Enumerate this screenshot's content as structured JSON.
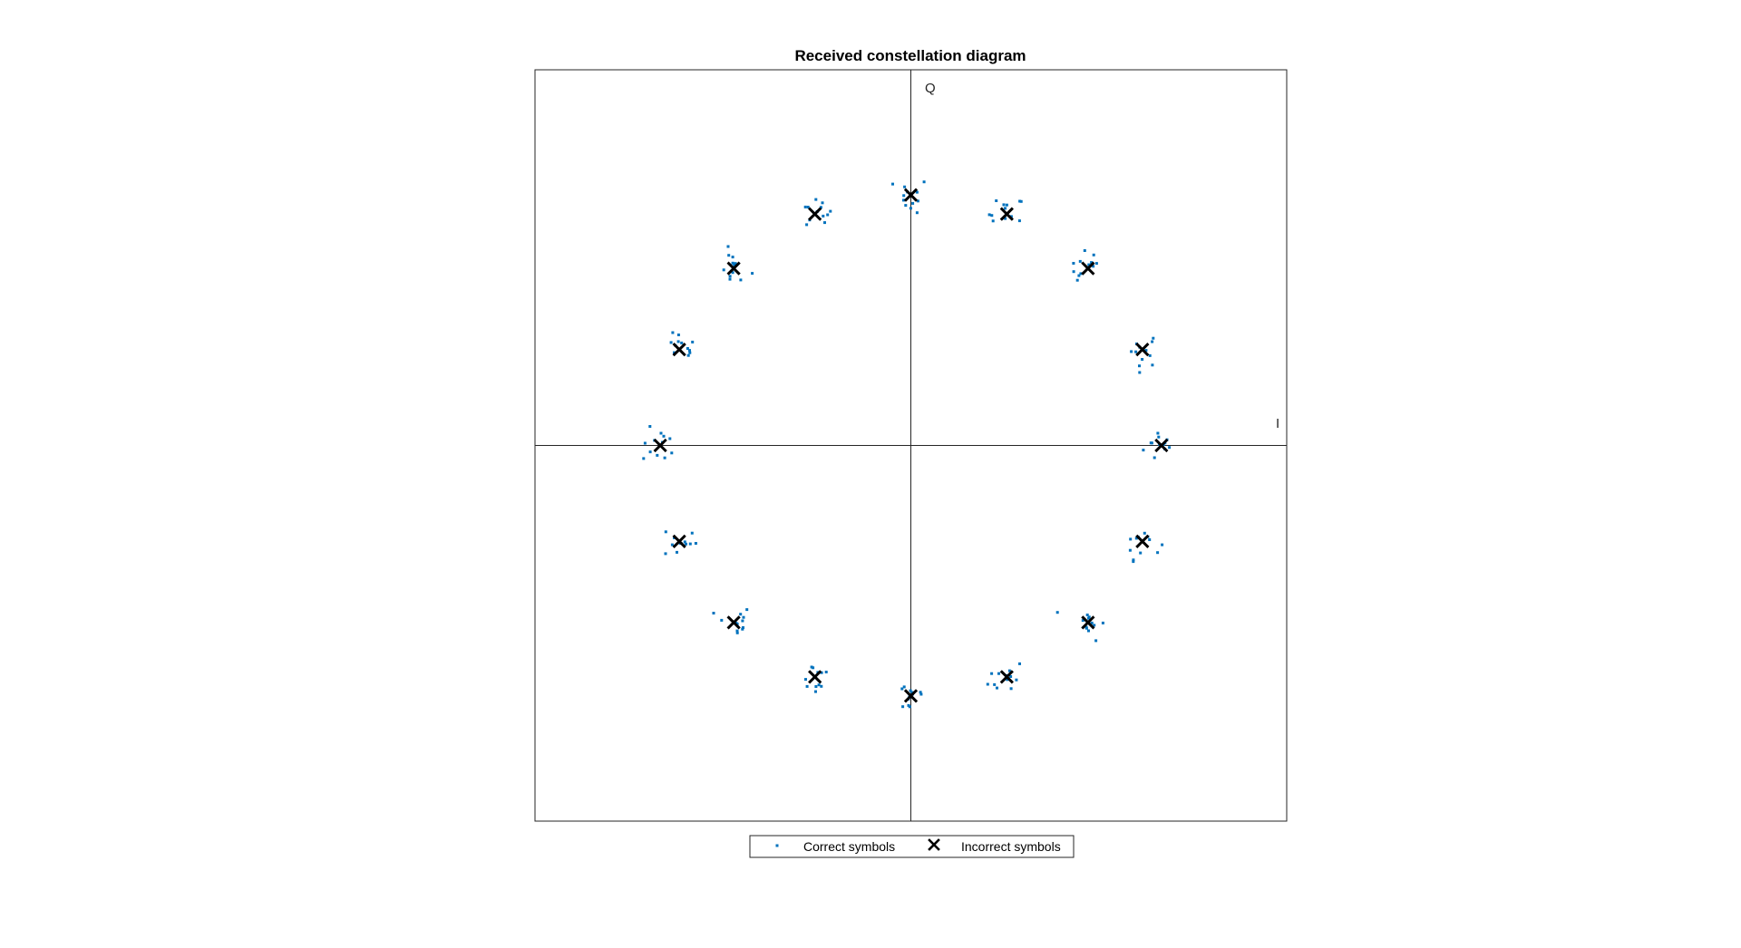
{
  "chart_data": {
    "type": "scatter",
    "title": "Received constellation diagram",
    "xlabel": "I",
    "ylabel": "Q",
    "xlim": [
      -1.5,
      1.5
    ],
    "ylim": [
      -1.5,
      1.5
    ],
    "grid": false,
    "axes_lines_through_origin": true,
    "legend_placement": "bottom",
    "series": [
      {
        "name": "Correct symbols",
        "marker": "dot",
        "color": "#0072BD",
        "points": []
      },
      {
        "name": "Incorrect symbols",
        "marker": "x",
        "color": "#000000",
        "points": [
          [
            1.0,
            0.0
          ],
          [
            0.924,
            0.383
          ],
          [
            0.707,
            0.707
          ],
          [
            0.383,
            0.924
          ],
          [
            0.0,
            1.0
          ],
          [
            -0.383,
            0.924
          ],
          [
            -0.707,
            0.707
          ],
          [
            -0.924,
            0.383
          ],
          [
            -1.0,
            0.0
          ],
          [
            -0.924,
            -0.383
          ],
          [
            -0.707,
            -0.707
          ],
          [
            -0.383,
            -0.924
          ],
          [
            0.0,
            -1.0
          ],
          [
            0.383,
            -0.924
          ],
          [
            0.707,
            -0.707
          ],
          [
            0.924,
            -0.383
          ]
        ]
      }
    ]
  }
}
